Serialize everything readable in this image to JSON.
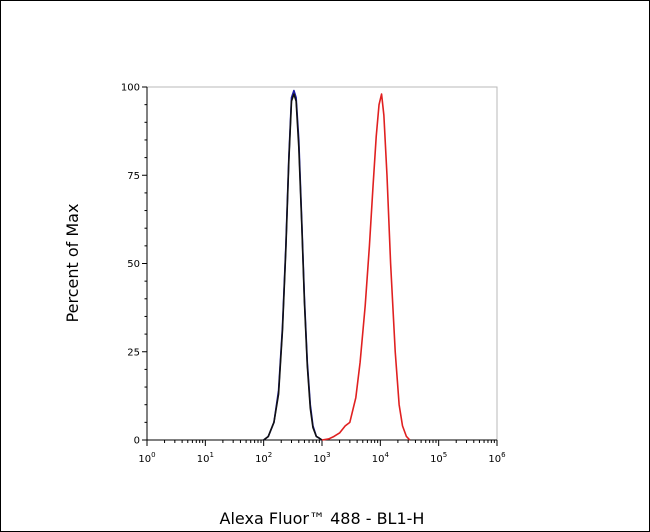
{
  "chart_data": {
    "type": "line",
    "title": "",
    "xlabel": "Alexa Fluor™ 488 - BL1-H",
    "ylabel": "Percent of Max",
    "x_scale": "log",
    "xlim": [
      1,
      1000000
    ],
    "ylim": [
      0,
      100
    ],
    "x_tick_labels": [
      {
        "value": 1,
        "base": "10",
        "exp": "0"
      },
      {
        "value": 10,
        "base": "10",
        "exp": "1"
      },
      {
        "value": 100,
        "base": "10",
        "exp": "2"
      },
      {
        "value": 1000,
        "base": "10",
        "exp": "3"
      },
      {
        "value": 10000,
        "base": "10",
        "exp": "4"
      },
      {
        "value": 100000,
        "base": "10",
        "exp": "5"
      },
      {
        "value": 1000000,
        "base": "10",
        "exp": "6"
      }
    ],
    "y_ticks": [
      0,
      25,
      50,
      75,
      100
    ],
    "y_tick_labels": [
      "0",
      "25",
      "50",
      "75",
      "100"
    ],
    "grid": false,
    "legend": "none",
    "series": [
      {
        "color": "#1a1aa6",
        "x": [
          100,
          120,
          150,
          180,
          210,
          240,
          270,
          300,
          330,
          360,
          400,
          450,
          500,
          560,
          630,
          700,
          800,
          900,
          1000
        ],
        "y": [
          0,
          1,
          5,
          14,
          32,
          55,
          80,
          97,
          99,
          97,
          85,
          62,
          40,
          22,
          10,
          4,
          1,
          0.5,
          0
        ]
      },
      {
        "color": "#111111",
        "x": [
          100,
          120,
          150,
          180,
          210,
          240,
          270,
          300,
          330,
          360,
          400,
          450,
          500,
          560,
          630,
          700,
          800,
          900,
          1000
        ],
        "y": [
          0,
          1,
          5,
          13,
          31,
          54,
          79,
          96,
          98,
          96,
          83,
          61,
          39,
          21,
          9,
          3.5,
          1,
          0.5,
          0
        ]
      },
      {
        "color": "#e02020",
        "x": [
          1000,
          1300,
          1600,
          2000,
          2500,
          3000,
          3800,
          4500,
          5500,
          6500,
          7500,
          8500,
          9500,
          10500,
          11500,
          13000,
          15000,
          18000,
          21000,
          24000,
          28000,
          32000
        ],
        "y": [
          0,
          0.3,
          1,
          2,
          4,
          5,
          12,
          22,
          38,
          55,
          72,
          86,
          95,
          98,
          92,
          75,
          50,
          25,
          10,
          4,
          1,
          0
        ]
      }
    ]
  }
}
